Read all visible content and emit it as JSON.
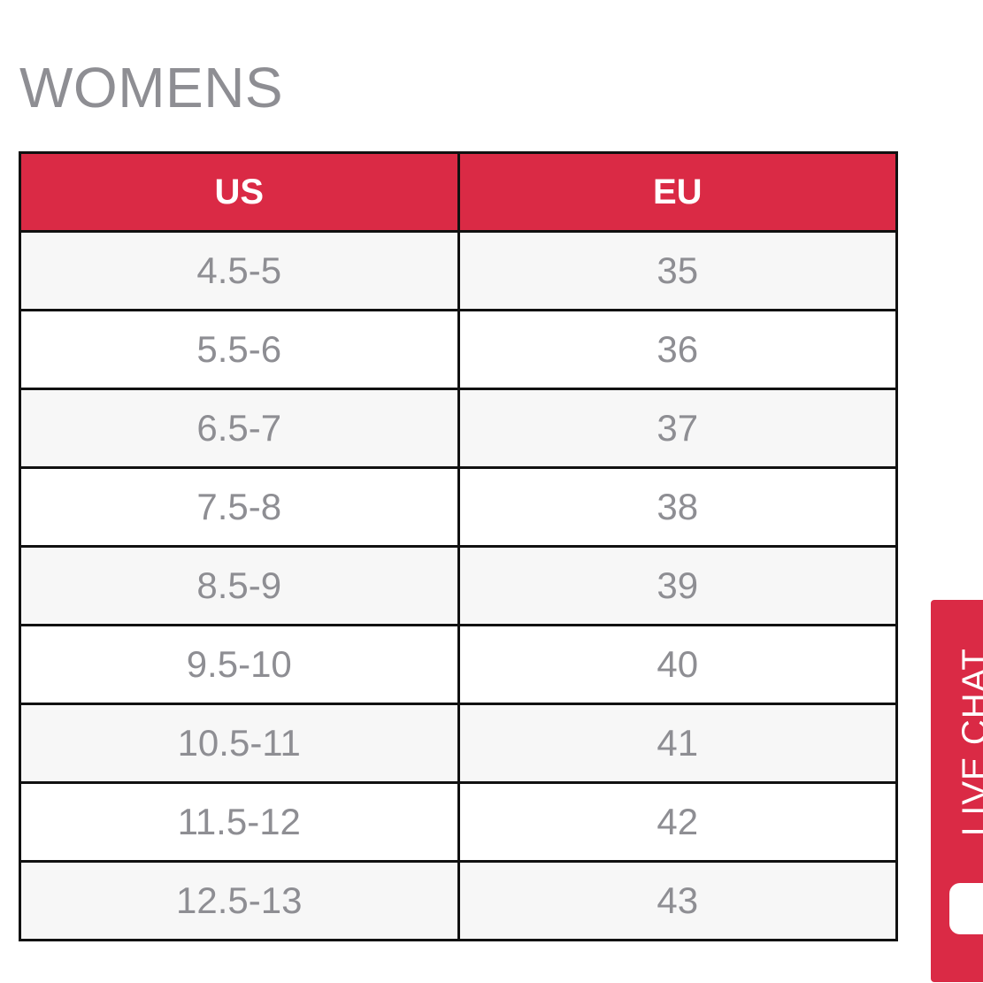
{
  "page": {
    "title": "WOMENS"
  },
  "size_table": {
    "columns": [
      "US",
      "EU"
    ],
    "rows": [
      {
        "us": "4.5-5",
        "eu": "35"
      },
      {
        "us": "5.5-6",
        "eu": "36"
      },
      {
        "us": "6.5-7",
        "eu": "37"
      },
      {
        "us": "7.5-8",
        "eu": "38"
      },
      {
        "us": "8.5-9",
        "eu": "39"
      },
      {
        "us": "9.5-10",
        "eu": "40"
      },
      {
        "us": "10.5-11",
        "eu": "41"
      },
      {
        "us": "11.5-12",
        "eu": "42"
      },
      {
        "us": "12.5-13",
        "eu": "43"
      }
    ]
  },
  "live_chat": {
    "label": "LIVE CHAT",
    "icon": "chat-bubble-icon"
  },
  "colors": {
    "header_red": "#da2a45",
    "text_gray": "#8e8e93",
    "border": "#111111"
  }
}
